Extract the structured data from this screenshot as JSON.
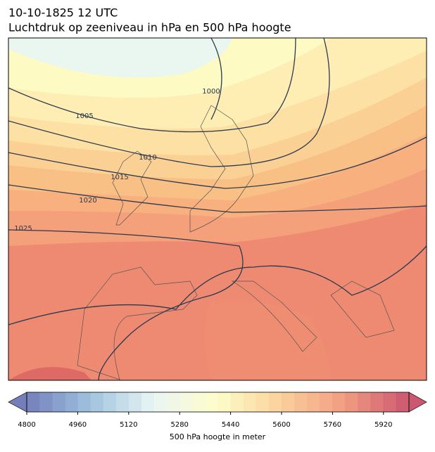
{
  "title": "10-10-1825 12 UTC",
  "subtitle": "Luchtdruk op zeeniveau in hPa en 500 hPa hoogte",
  "isobars": [
    "1000",
    "1005",
    "1010",
    "1015",
    "1020",
    "1025"
  ],
  "colorbar": {
    "label": "500 hPa hoogte in meter",
    "lim": [
      4800,
      6000
    ],
    "step": 40,
    "ticks": [
      4800,
      4960,
      5120,
      5280,
      5440,
      5600,
      5760,
      5920
    ],
    "colors": [
      "#5b68b0",
      "#8fb8d8",
      "#e6f4f1",
      "#fefcc0",
      "#f9c88a",
      "#ef8a6c",
      "#c23a58"
    ]
  }
}
